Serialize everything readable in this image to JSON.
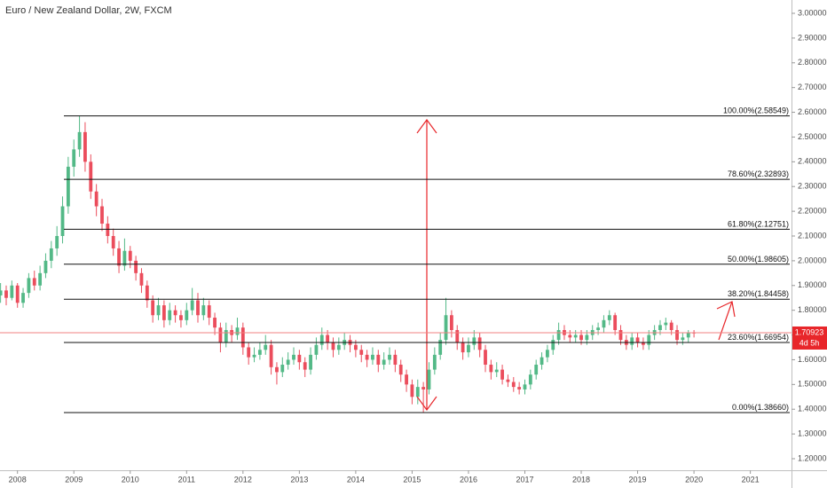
{
  "chart_data": {
    "type": "candlestick",
    "title": "Euro / New Zealand Dollar, 2W, FXCM",
    "up_color": "#53b987",
    "down_color": "#eb4d5c",
    "xlim": [
      2007.69,
      2021.73
    ],
    "xticks": [
      2008,
      2009,
      2010,
      2011,
      2012,
      2013,
      2014,
      2015,
      2016,
      2017,
      2018,
      2019,
      2020,
      2021
    ],
    "ylim": [
      1.2,
      3.0
    ],
    "yticks": [
      {
        "value": 1.2,
        "label": "1.20000"
      },
      {
        "value": 1.3,
        "label": "1.30000"
      },
      {
        "value": 1.4,
        "label": "1.40000"
      },
      {
        "value": 1.5,
        "label": "1.50000"
      },
      {
        "value": 1.6,
        "label": "1.60000"
      },
      {
        "value": 1.7,
        "label": "1.70000"
      },
      {
        "value": 1.8,
        "label": "1.80000"
      },
      {
        "value": 1.9,
        "label": "1.90000"
      },
      {
        "value": 2.0,
        "label": "2.00000"
      },
      {
        "value": 2.1,
        "label": "2.10000"
      },
      {
        "value": 2.2,
        "label": "2.20000"
      },
      {
        "value": 2.3,
        "label": "2.30000"
      },
      {
        "value": 2.4,
        "label": "2.40000"
      },
      {
        "value": 2.5,
        "label": "2.50000"
      },
      {
        "value": 2.6,
        "label": "2.60000"
      },
      {
        "value": 2.7,
        "label": "2.70000"
      },
      {
        "value": 2.8,
        "label": "2.80000"
      },
      {
        "value": 2.9,
        "label": "2.90000"
      },
      {
        "value": 3.0,
        "label": "3.00000"
      }
    ],
    "fib_levels": [
      {
        "value": 2.58549,
        "label": "100.00%(2.58549)"
      },
      {
        "value": 2.32893,
        "label": "78.60%(2.32893)"
      },
      {
        "value": 2.12751,
        "label": "61.80%(2.12751)"
      },
      {
        "value": 1.98605,
        "label": "50.00%(1.98605)"
      },
      {
        "value": 1.84458,
        "label": "38.20%(1.84458)"
      },
      {
        "value": 1.66954,
        "label": "23.60%(1.66954)"
      },
      {
        "value": 1.3866,
        "label": "0.00%(1.38660)"
      }
    ],
    "last_price": 1.70923,
    "countdown": "4d 5h",
    "candles": [
      [
        2007.7,
        1.86,
        1.91,
        1.83,
        1.88
      ],
      [
        2007.8,
        1.88,
        1.9,
        1.82,
        1.85
      ],
      [
        2007.9,
        1.85,
        1.92,
        1.84,
        1.9
      ],
      [
        2008.0,
        1.9,
        1.91,
        1.81,
        1.83
      ],
      [
        2008.1,
        1.83,
        1.89,
        1.81,
        1.87
      ],
      [
        2008.2,
        1.87,
        1.95,
        1.85,
        1.93
      ],
      [
        2008.3,
        1.93,
        1.96,
        1.88,
        1.9
      ],
      [
        2008.4,
        1.9,
        1.98,
        1.88,
        1.95
      ],
      [
        2008.5,
        1.95,
        2.03,
        1.93,
        2.0
      ],
      [
        2008.6,
        2.0,
        2.08,
        1.97,
        2.05
      ],
      [
        2008.7,
        2.05,
        2.14,
        2.02,
        2.1
      ],
      [
        2008.8,
        2.1,
        2.26,
        2.07,
        2.22
      ],
      [
        2008.9,
        2.22,
        2.42,
        2.19,
        2.38
      ],
      [
        2009.0,
        2.38,
        2.49,
        2.34,
        2.45
      ],
      [
        2009.1,
        2.45,
        2.585,
        2.42,
        2.52
      ],
      [
        2009.2,
        2.52,
        2.56,
        2.36,
        2.4
      ],
      [
        2009.3,
        2.4,
        2.43,
        2.25,
        2.28
      ],
      [
        2009.4,
        2.28,
        2.31,
        2.18,
        2.22
      ],
      [
        2009.5,
        2.22,
        2.25,
        2.12,
        2.15
      ],
      [
        2009.6,
        2.15,
        2.18,
        2.07,
        2.1
      ],
      [
        2009.7,
        2.1,
        2.13,
        2.02,
        2.05
      ],
      [
        2009.8,
        2.05,
        2.08,
        1.95,
        1.98
      ],
      [
        2009.9,
        1.98,
        2.09,
        1.96,
        2.04
      ],
      [
        2010.0,
        2.04,
        2.06,
        1.97,
        2.0
      ],
      [
        2010.1,
        2.0,
        2.02,
        1.92,
        1.95
      ],
      [
        2010.2,
        1.95,
        1.97,
        1.87,
        1.9
      ],
      [
        2010.3,
        1.9,
        1.92,
        1.81,
        1.84
      ],
      [
        2010.4,
        1.84,
        1.86,
        1.75,
        1.78
      ],
      [
        2010.5,
        1.78,
        1.85,
        1.76,
        1.82
      ],
      [
        2010.6,
        1.82,
        1.84,
        1.73,
        1.76
      ],
      [
        2010.7,
        1.76,
        1.83,
        1.74,
        1.8
      ],
      [
        2010.8,
        1.8,
        1.82,
        1.75,
        1.78
      ],
      [
        2010.9,
        1.78,
        1.8,
        1.73,
        1.76
      ],
      [
        2011.0,
        1.76,
        1.83,
        1.74,
        1.8
      ],
      [
        2011.1,
        1.8,
        1.89,
        1.78,
        1.84
      ],
      [
        2011.2,
        1.84,
        1.87,
        1.75,
        1.78
      ],
      [
        2011.3,
        1.78,
        1.85,
        1.76,
        1.82
      ],
      [
        2011.4,
        1.82,
        1.84,
        1.74,
        1.77
      ],
      [
        2011.5,
        1.77,
        1.79,
        1.7,
        1.73
      ],
      [
        2011.6,
        1.73,
        1.75,
        1.63,
        1.67
      ],
      [
        2011.7,
        1.67,
        1.75,
        1.65,
        1.72
      ],
      [
        2011.8,
        1.72,
        1.74,
        1.67,
        1.7
      ],
      [
        2011.9,
        1.7,
        1.77,
        1.68,
        1.73
      ],
      [
        2012.0,
        1.73,
        1.75,
        1.62,
        1.65
      ],
      [
        2012.1,
        1.65,
        1.67,
        1.58,
        1.61
      ],
      [
        2012.2,
        1.61,
        1.65,
        1.59,
        1.62
      ],
      [
        2012.3,
        1.62,
        1.67,
        1.6,
        1.64
      ],
      [
        2012.4,
        1.64,
        1.7,
        1.62,
        1.66
      ],
      [
        2012.5,
        1.66,
        1.68,
        1.54,
        1.57
      ],
      [
        2012.6,
        1.57,
        1.59,
        1.5,
        1.55
      ],
      [
        2012.7,
        1.55,
        1.61,
        1.53,
        1.58
      ],
      [
        2012.8,
        1.58,
        1.63,
        1.56,
        1.6
      ],
      [
        2012.9,
        1.6,
        1.65,
        1.58,
        1.62
      ],
      [
        2013.0,
        1.62,
        1.64,
        1.56,
        1.59
      ],
      [
        2013.1,
        1.59,
        1.61,
        1.53,
        1.56
      ],
      [
        2013.2,
        1.56,
        1.65,
        1.54,
        1.62
      ],
      [
        2013.3,
        1.62,
        1.69,
        1.6,
        1.66
      ],
      [
        2013.4,
        1.66,
        1.73,
        1.64,
        1.7
      ],
      [
        2013.5,
        1.7,
        1.72,
        1.64,
        1.67
      ],
      [
        2013.6,
        1.67,
        1.69,
        1.61,
        1.64
      ],
      [
        2013.7,
        1.64,
        1.69,
        1.62,
        1.66
      ],
      [
        2013.8,
        1.66,
        1.71,
        1.64,
        1.68
      ],
      [
        2013.9,
        1.68,
        1.7,
        1.63,
        1.66
      ],
      [
        2014.0,
        1.66,
        1.68,
        1.61,
        1.64
      ],
      [
        2014.1,
        1.64,
        1.66,
        1.59,
        1.62
      ],
      [
        2014.2,
        1.62,
        1.64,
        1.57,
        1.6
      ],
      [
        2014.3,
        1.6,
        1.65,
        1.58,
        1.62
      ],
      [
        2014.4,
        1.62,
        1.64,
        1.55,
        1.58
      ],
      [
        2014.5,
        1.58,
        1.63,
        1.56,
        1.6
      ],
      [
        2014.6,
        1.6,
        1.65,
        1.58,
        1.62
      ],
      [
        2014.7,
        1.62,
        1.64,
        1.55,
        1.58
      ],
      [
        2014.8,
        1.58,
        1.6,
        1.51,
        1.54
      ],
      [
        2014.9,
        1.54,
        1.56,
        1.47,
        1.5
      ],
      [
        2015.0,
        1.5,
        1.52,
        1.42,
        1.45
      ],
      [
        2015.1,
        1.45,
        1.52,
        1.42,
        1.49
      ],
      [
        2015.2,
        1.49,
        1.51,
        1.3866,
        1.48
      ],
      [
        2015.3,
        1.48,
        1.59,
        1.46,
        1.56
      ],
      [
        2015.4,
        1.56,
        1.65,
        1.54,
        1.62
      ],
      [
        2015.5,
        1.62,
        1.71,
        1.6,
        1.68
      ],
      [
        2015.6,
        1.68,
        1.85,
        1.66,
        1.78
      ],
      [
        2015.7,
        1.78,
        1.8,
        1.69,
        1.72
      ],
      [
        2015.8,
        1.72,
        1.74,
        1.64,
        1.67
      ],
      [
        2015.9,
        1.67,
        1.69,
        1.6,
        1.63
      ],
      [
        2016.0,
        1.63,
        1.69,
        1.61,
        1.66
      ],
      [
        2016.1,
        1.66,
        1.72,
        1.64,
        1.69
      ],
      [
        2016.2,
        1.69,
        1.71,
        1.61,
        1.64
      ],
      [
        2016.3,
        1.64,
        1.66,
        1.55,
        1.58
      ],
      [
        2016.4,
        1.58,
        1.6,
        1.52,
        1.55
      ],
      [
        2016.5,
        1.55,
        1.59,
        1.53,
        1.56
      ],
      [
        2016.6,
        1.56,
        1.58,
        1.5,
        1.52
      ],
      [
        2016.7,
        1.52,
        1.54,
        1.49,
        1.51
      ],
      [
        2016.8,
        1.51,
        1.53,
        1.47,
        1.49
      ],
      [
        2016.9,
        1.49,
        1.51,
        1.46,
        1.48
      ],
      [
        2017.0,
        1.48,
        1.52,
        1.46,
        1.5
      ],
      [
        2017.1,
        1.5,
        1.56,
        1.48,
        1.54
      ],
      [
        2017.2,
        1.54,
        1.6,
        1.52,
        1.58
      ],
      [
        2017.3,
        1.58,
        1.63,
        1.56,
        1.61
      ],
      [
        2017.4,
        1.61,
        1.66,
        1.59,
        1.64
      ],
      [
        2017.5,
        1.64,
        1.7,
        1.62,
        1.68
      ],
      [
        2017.6,
        1.68,
        1.75,
        1.66,
        1.72
      ],
      [
        2017.7,
        1.72,
        1.74,
        1.68,
        1.7
      ],
      [
        2017.8,
        1.7,
        1.72,
        1.67,
        1.69
      ],
      [
        2017.9,
        1.69,
        1.72,
        1.67,
        1.7
      ],
      [
        2018.0,
        1.7,
        1.72,
        1.66,
        1.68
      ],
      [
        2018.1,
        1.68,
        1.72,
        1.66,
        1.7
      ],
      [
        2018.2,
        1.7,
        1.74,
        1.68,
        1.72
      ],
      [
        2018.3,
        1.72,
        1.75,
        1.7,
        1.73
      ],
      [
        2018.4,
        1.73,
        1.78,
        1.71,
        1.76
      ],
      [
        2018.5,
        1.76,
        1.8,
        1.74,
        1.78
      ],
      [
        2018.6,
        1.78,
        1.79,
        1.7,
        1.72
      ],
      [
        2018.7,
        1.72,
        1.74,
        1.66,
        1.68
      ],
      [
        2018.8,
        1.68,
        1.7,
        1.64,
        1.66
      ],
      [
        2018.9,
        1.66,
        1.71,
        1.64,
        1.69
      ],
      [
        2019.0,
        1.69,
        1.71,
        1.65,
        1.67
      ],
      [
        2019.1,
        1.67,
        1.69,
        1.64,
        1.66
      ],
      [
        2019.2,
        1.66,
        1.72,
        1.64,
        1.7
      ],
      [
        2019.3,
        1.7,
        1.74,
        1.68,
        1.72
      ],
      [
        2019.4,
        1.72,
        1.76,
        1.7,
        1.74
      ],
      [
        2019.5,
        1.74,
        1.77,
        1.72,
        1.75
      ],
      [
        2019.6,
        1.75,
        1.76,
        1.7,
        1.72
      ],
      [
        2019.7,
        1.72,
        1.74,
        1.66,
        1.68
      ],
      [
        2019.8,
        1.68,
        1.71,
        1.66,
        1.69
      ],
      [
        2019.9,
        1.69,
        1.72,
        1.67,
        1.71
      ],
      [
        2020.0,
        1.71,
        1.72,
        1.69,
        1.70923
      ]
    ]
  }
}
